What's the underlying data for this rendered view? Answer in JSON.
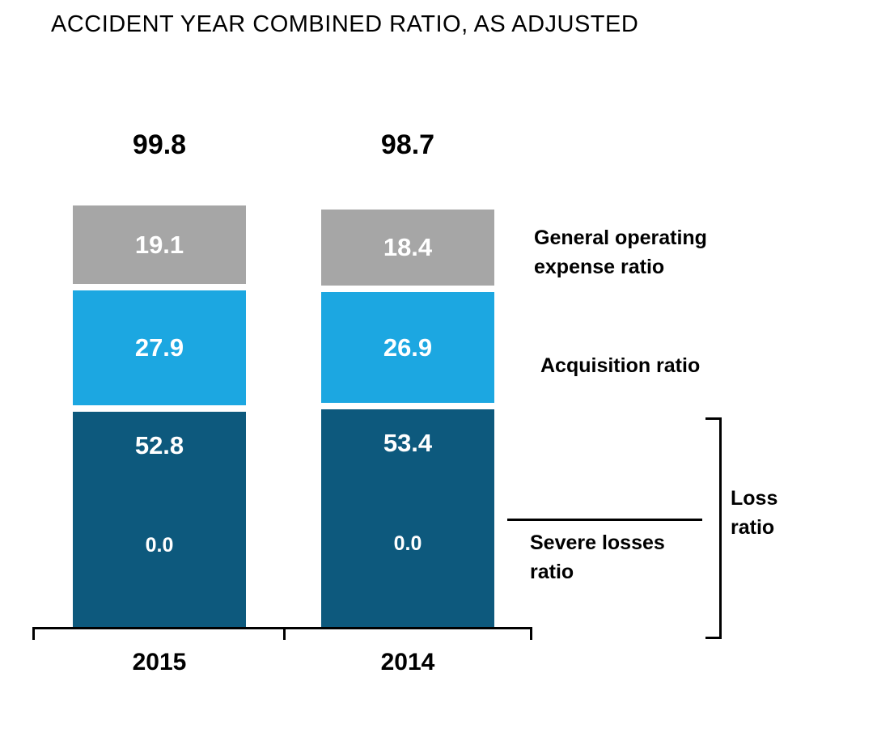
{
  "chart_data": {
    "type": "bar",
    "stacked": true,
    "title": "ACCIDENT YEAR COMBINED RATIO, AS ADJUSTED",
    "categories": [
      "2015",
      "2014"
    ],
    "totals": [
      "99.8",
      "98.7"
    ],
    "series": [
      {
        "name": "General operating expense ratio",
        "values": [
          19.1,
          18.4
        ],
        "color": "#a6a6a6"
      },
      {
        "name": "Acquisition ratio",
        "values": [
          27.9,
          26.9
        ],
        "color": "#1ca7e1"
      },
      {
        "name": "Loss ratio",
        "values": [
          52.8,
          53.4
        ],
        "color": "#0d597d"
      }
    ],
    "annotations": [
      {
        "name": "Severe losses ratio",
        "values": [
          0.0,
          0.0
        ],
        "display": [
          "0.0",
          "0.0"
        ]
      }
    ],
    "ylim": [
      0,
      100
    ],
    "legend_position": "right",
    "grid": false
  },
  "colors": {
    "gray": "#a6a6a6",
    "light_blue": "#1ca7e1",
    "dark_blue": "#0d597d",
    "text": "#000000",
    "bar_label": "#ffffff",
    "background": "#ffffff"
  }
}
